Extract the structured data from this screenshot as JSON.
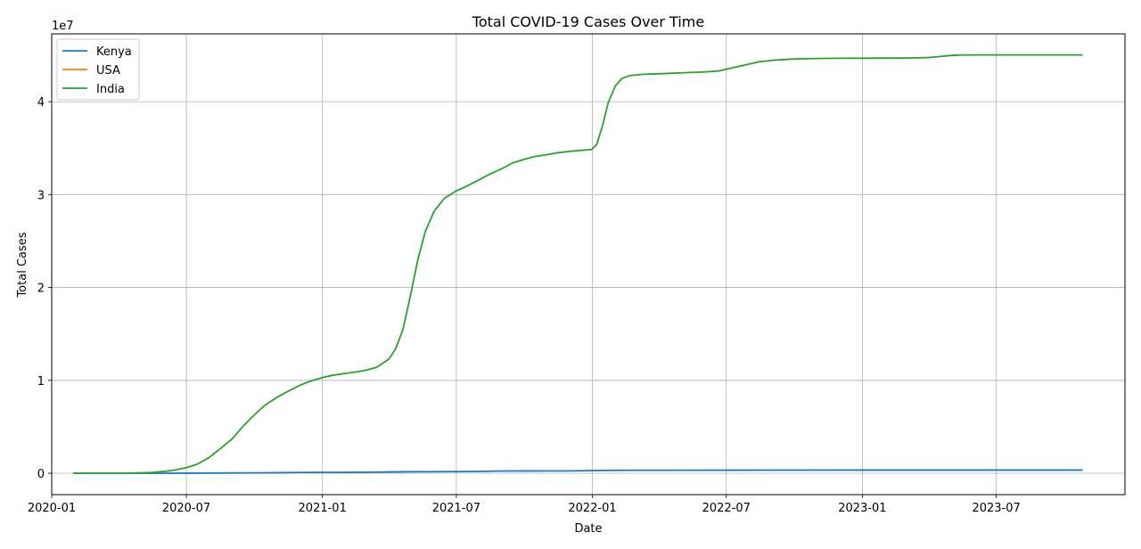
{
  "chart_data": {
    "type": "line",
    "title": "Total COVID-19 Cases Over Time",
    "xlabel": "Date",
    "ylabel": "Total Cases",
    "y_offset_label": "1e7",
    "ylim": [
      -2300000,
      47300000
    ],
    "xlim": [
      "2020-01-01",
      "2023-12-22"
    ],
    "grid": true,
    "legend_position": "top-left",
    "x_ticks": [
      {
        "date": "2020-01-01",
        "label": "2020-01"
      },
      {
        "date": "2020-07-01",
        "label": "2020-07"
      },
      {
        "date": "2021-01-01",
        "label": "2021-01"
      },
      {
        "date": "2021-07-01",
        "label": "2021-07"
      },
      {
        "date": "2022-01-01",
        "label": "2022-01"
      },
      {
        "date": "2022-07-01",
        "label": "2022-07"
      },
      {
        "date": "2023-01-01",
        "label": "2023-01"
      },
      {
        "date": "2023-07-01",
        "label": "2023-07"
      }
    ],
    "y_ticks": [
      {
        "value": 0,
        "label": "0"
      },
      {
        "value": 10000000,
        "label": "1"
      },
      {
        "value": 20000000,
        "label": "2"
      },
      {
        "value": 30000000,
        "label": "3"
      },
      {
        "value": 40000000,
        "label": "4"
      }
    ],
    "series": [
      {
        "name": "Kenya",
        "color": "#1f77b4",
        "points": [
          [
            "2020-01-31",
            0
          ],
          [
            "2020-03-15",
            3
          ],
          [
            "2020-05-01",
            400
          ],
          [
            "2020-06-01",
            2000
          ],
          [
            "2020-07-01",
            6500
          ],
          [
            "2020-08-01",
            20000
          ],
          [
            "2020-09-01",
            34000
          ],
          [
            "2020-10-01",
            39000
          ],
          [
            "2020-11-01",
            55000
          ],
          [
            "2020-12-01",
            86000
          ],
          [
            "2021-01-01",
            97000
          ],
          [
            "2021-03-01",
            108000
          ],
          [
            "2021-04-01",
            140000
          ],
          [
            "2021-05-01",
            165000
          ],
          [
            "2021-06-01",
            172000
          ],
          [
            "2021-07-01",
            185000
          ],
          [
            "2021-08-01",
            205000
          ],
          [
            "2021-09-01",
            240000
          ],
          [
            "2021-10-01",
            250000
          ],
          [
            "2021-11-01",
            254000
          ],
          [
            "2021-12-01",
            256000
          ],
          [
            "2022-01-01",
            290000
          ],
          [
            "2022-02-01",
            320000
          ],
          [
            "2022-03-01",
            323000
          ],
          [
            "2022-05-01",
            324000
          ],
          [
            "2022-07-01",
            334000
          ],
          [
            "2022-09-01",
            338000
          ],
          [
            "2023-01-01",
            342000
          ],
          [
            "2023-07-01",
            343500
          ],
          [
            "2023-10-25",
            344000
          ]
        ]
      },
      {
        "name": "USA",
        "color": "#ff7f0e",
        "points": []
      },
      {
        "name": "India",
        "color": "#2ca02c",
        "points": [
          [
            "2020-01-31",
            0
          ],
          [
            "2020-03-15",
            100
          ],
          [
            "2020-04-15",
            12000
          ],
          [
            "2020-05-15",
            90000
          ],
          [
            "2020-06-01",
            200000
          ],
          [
            "2020-06-15",
            340000
          ],
          [
            "2020-07-01",
            600000
          ],
          [
            "2020-07-15",
            950000
          ],
          [
            "2020-08-01",
            1700000
          ],
          [
            "2020-08-15",
            2600000
          ],
          [
            "2020-09-01",
            3700000
          ],
          [
            "2020-09-15",
            5000000
          ],
          [
            "2020-10-01",
            6300000
          ],
          [
            "2020-10-15",
            7300000
          ],
          [
            "2020-11-01",
            8200000
          ],
          [
            "2020-11-15",
            8800000
          ],
          [
            "2020-12-01",
            9450000
          ],
          [
            "2020-12-15",
            9900000
          ],
          [
            "2021-01-01",
            10300000
          ],
          [
            "2021-01-15",
            10550000
          ],
          [
            "2021-02-01",
            10750000
          ],
          [
            "2021-02-15",
            10900000
          ],
          [
            "2021-03-01",
            11100000
          ],
          [
            "2021-03-15",
            11400000
          ],
          [
            "2021-04-01",
            12300000
          ],
          [
            "2021-04-10",
            13400000
          ],
          [
            "2021-04-20",
            15500000
          ],
          [
            "2021-05-01",
            19500000
          ],
          [
            "2021-05-10",
            23000000
          ],
          [
            "2021-05-20",
            26000000
          ],
          [
            "2021-06-01",
            28200000
          ],
          [
            "2021-06-15",
            29600000
          ],
          [
            "2021-07-01",
            30400000
          ],
          [
            "2021-07-15",
            30900000
          ],
          [
            "2021-08-01",
            31600000
          ],
          [
            "2021-08-15",
            32200000
          ],
          [
            "2021-09-01",
            32800000
          ],
          [
            "2021-09-15",
            33400000
          ],
          [
            "2021-10-01",
            33800000
          ],
          [
            "2021-10-15",
            34100000
          ],
          [
            "2021-11-01",
            34300000
          ],
          [
            "2021-11-15",
            34500000
          ],
          [
            "2021-12-01",
            34650000
          ],
          [
            "2021-12-15",
            34750000
          ],
          [
            "2021-12-31",
            34850000
          ],
          [
            "2022-01-07",
            35400000
          ],
          [
            "2022-01-15",
            37500000
          ],
          [
            "2022-01-22",
            39800000
          ],
          [
            "2022-02-01",
            41700000
          ],
          [
            "2022-02-10",
            42500000
          ],
          [
            "2022-02-20",
            42800000
          ],
          [
            "2022-03-10",
            42950000
          ],
          [
            "2022-04-01",
            43000000
          ],
          [
            "2022-05-01",
            43100000
          ],
          [
            "2022-06-01",
            43200000
          ],
          [
            "2022-06-20",
            43300000
          ],
          [
            "2022-07-01",
            43500000
          ],
          [
            "2022-07-15",
            43750000
          ],
          [
            "2022-08-01",
            44050000
          ],
          [
            "2022-08-15",
            44300000
          ],
          [
            "2022-09-01",
            44450000
          ],
          [
            "2022-10-01",
            44600000
          ],
          [
            "2022-11-01",
            44650000
          ],
          [
            "2022-12-01",
            44670000
          ],
          [
            "2023-01-01",
            44680000
          ],
          [
            "2023-02-01",
            44690000
          ],
          [
            "2023-03-01",
            44700000
          ],
          [
            "2023-04-01",
            44750000
          ],
          [
            "2023-04-15",
            44850000
          ],
          [
            "2023-05-01",
            44980000
          ],
          [
            "2023-05-15",
            45020000
          ],
          [
            "2023-06-01",
            45030000
          ],
          [
            "2023-07-01",
            45030000
          ],
          [
            "2023-10-25",
            45030000
          ]
        ]
      }
    ]
  }
}
